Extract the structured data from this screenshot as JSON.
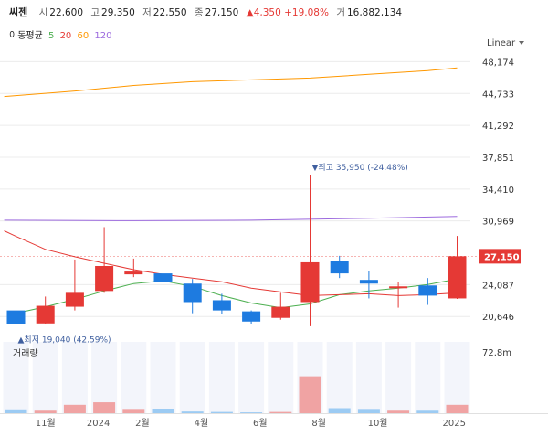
{
  "header": {
    "name": "씨젠",
    "open_label": "시",
    "open": "22,600",
    "high_label": "고",
    "high": "29,350",
    "low_label": "저",
    "low": "22,550",
    "close_label": "종",
    "close": "27,150",
    "change": "▲4,350 +19.08%",
    "volume_label": "거",
    "volume": "16,882,134"
  },
  "ma_legend": {
    "label": "이동평균",
    "periods": [
      {
        "value": "5",
        "color": "#4caf50"
      },
      {
        "value": "20",
        "color": "#e53935"
      },
      {
        "value": "60",
        "color": "#ff9800"
      },
      {
        "value": "120",
        "color": "#9c6ade"
      }
    ]
  },
  "scale_mode": "Linear",
  "volume_title": "거래량",
  "colors": {
    "up": "#e53935",
    "down": "#1e7be0",
    "vol_up": "#f0a3a3",
    "vol_down": "#9ccbf3"
  },
  "chart_data": {
    "type": "candlestick",
    "y_ticks": [
      "48,174",
      "44,733",
      "41,292",
      "37,851",
      "34,410",
      "30,969",
      "24,087",
      "20,646"
    ],
    "y_tick_values": [
      48174,
      44733,
      41292,
      37851,
      34410,
      30969,
      24087,
      20646
    ],
    "ylim": [
      18300,
      49400
    ],
    "current_price": {
      "label": "27,150",
      "value": 27150
    },
    "x_labels": [
      {
        "label": "11월",
        "index": 1
      },
      {
        "label": "2024",
        "index": 2.8
      },
      {
        "label": "2월",
        "index": 4.3
      },
      {
        "label": "4월",
        "index": 6.3
      },
      {
        "label": "6월",
        "index": 8.3
      },
      {
        "label": "8월",
        "index": 10.3
      },
      {
        "label": "10월",
        "index": 12.3
      },
      {
        "label": "2025",
        "index": 14.9
      }
    ],
    "candles": [
      {
        "o": 21300,
        "h": 21700,
        "l": 19040,
        "c": 19800
      },
      {
        "o": 19900,
        "h": 22800,
        "l": 19800,
        "c": 21800
      },
      {
        "o": 21700,
        "h": 26800,
        "l": 21300,
        "c": 23200
      },
      {
        "o": 23400,
        "h": 30300,
        "l": 23200,
        "c": 26100
      },
      {
        "o": 25200,
        "h": 26900,
        "l": 24900,
        "c": 25500
      },
      {
        "o": 25300,
        "h": 27300,
        "l": 24100,
        "c": 24400
      },
      {
        "o": 24200,
        "h": 24700,
        "l": 21000,
        "c": 22200
      },
      {
        "o": 22400,
        "h": 23100,
        "l": 20900,
        "c": 21300
      },
      {
        "o": 21200,
        "h": 21300,
        "l": 19800,
        "c": 20100
      },
      {
        "o": 20500,
        "h": 23200,
        "l": 20300,
        "c": 21700
      },
      {
        "o": 22200,
        "h": 35950,
        "l": 19600,
        "c": 26500
      },
      {
        "o": 26600,
        "h": 27200,
        "l": 24800,
        "c": 25300
      },
      {
        "o": 24600,
        "h": 25600,
        "l": 22600,
        "c": 24200
      },
      {
        "o": 23700,
        "h": 24400,
        "l": 21600,
        "c": 23900
      },
      {
        "o": 24000,
        "h": 24800,
        "l": 21900,
        "c": 22900
      },
      {
        "o": 22600,
        "h": 29350,
        "l": 22550,
        "c": 27150
      }
    ],
    "ma_series": [
      {
        "period": "5",
        "color": "#4caf50",
        "values": [
          [
            0,
            21000
          ],
          [
            1,
            21700
          ],
          [
            2,
            22500
          ],
          [
            3,
            23400
          ],
          [
            4,
            24200
          ],
          [
            5,
            24500
          ],
          [
            6,
            23900
          ],
          [
            7,
            22900
          ],
          [
            8,
            22100
          ],
          [
            9,
            21600
          ],
          [
            10,
            22000
          ],
          [
            11,
            23000
          ],
          [
            12,
            23400
          ],
          [
            13,
            23700
          ],
          [
            14,
            24100
          ],
          [
            15,
            24700
          ]
        ]
      },
      {
        "period": "20",
        "color": "#e53935",
        "values": [
          [
            -0.4,
            29900
          ],
          [
            0,
            29300
          ],
          [
            1,
            27900
          ],
          [
            2,
            27100
          ],
          [
            3,
            26400
          ],
          [
            4,
            25700
          ],
          [
            5,
            25200
          ],
          [
            6,
            24800
          ],
          [
            7,
            24400
          ],
          [
            8,
            23700
          ],
          [
            9,
            23300
          ],
          [
            10,
            22900
          ],
          [
            11,
            23000
          ],
          [
            12,
            23100
          ],
          [
            13,
            22900
          ],
          [
            14,
            23000
          ],
          [
            15,
            23200
          ]
        ]
      },
      {
        "period": "60",
        "color": "#ff9800",
        "values": [
          [
            -0.4,
            44400
          ],
          [
            2,
            45000
          ],
          [
            4,
            45600
          ],
          [
            6,
            46000
          ],
          [
            8,
            46200
          ],
          [
            10,
            46400
          ],
          [
            12,
            46800
          ],
          [
            14,
            47200
          ],
          [
            15,
            47500
          ]
        ]
      },
      {
        "period": "120",
        "color": "#9c6ade",
        "values": [
          [
            -0.4,
            31050
          ],
          [
            4,
            31000
          ],
          [
            8,
            31050
          ],
          [
            12,
            31250
          ],
          [
            15,
            31450
          ]
        ]
      }
    ],
    "annotations": [
      {
        "label": "최고 35,950 (-24.48%)",
        "index": 10,
        "value": 35950,
        "pos": "above"
      },
      {
        "label": "최저 19,040 (42.59%)",
        "index": 0,
        "value": 19040,
        "pos": "below"
      }
    ],
    "volume": {
      "axis_label": "72.8m",
      "axis_value": 72.8,
      "max": 85,
      "values": [
        3.5,
        3,
        10,
        13,
        4,
        5,
        2,
        1.5,
        1,
        1.5,
        44,
        6,
        4,
        3,
        3,
        10
      ]
    }
  }
}
